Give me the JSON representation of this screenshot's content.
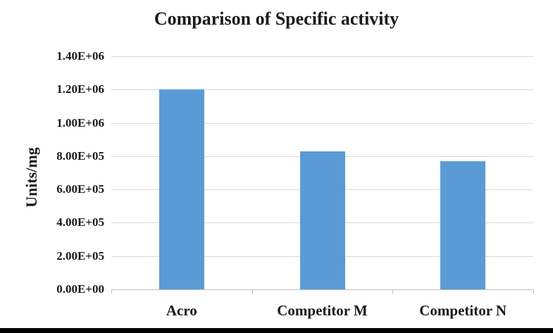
{
  "chart_data": {
    "type": "bar",
    "title": "Comparison of Specific activity",
    "xlabel": "",
    "ylabel": "Units/mg",
    "categories": [
      "Acro",
      "Competitor M",
      "Competitor N"
    ],
    "values": [
      1200000,
      830000,
      770000
    ],
    "ylim": [
      0,
      1400000
    ],
    "ytick_step": 200000,
    "ytick_labels": [
      "0.00E+00",
      "2.00E+05",
      "4.00E+05",
      "6.00E+05",
      "8.00E+05",
      "1.00E+06",
      "1.20E+06",
      "1.40E+06"
    ],
    "grid": true,
    "legend": false,
    "bar_color": "#5B9BD5",
    "gridline_color": "#D9D9D9",
    "axis_color": "#BFBFBF",
    "text_color": "#1a1a1a"
  },
  "frame": {
    "bottom_bar_color": "#000000"
  }
}
